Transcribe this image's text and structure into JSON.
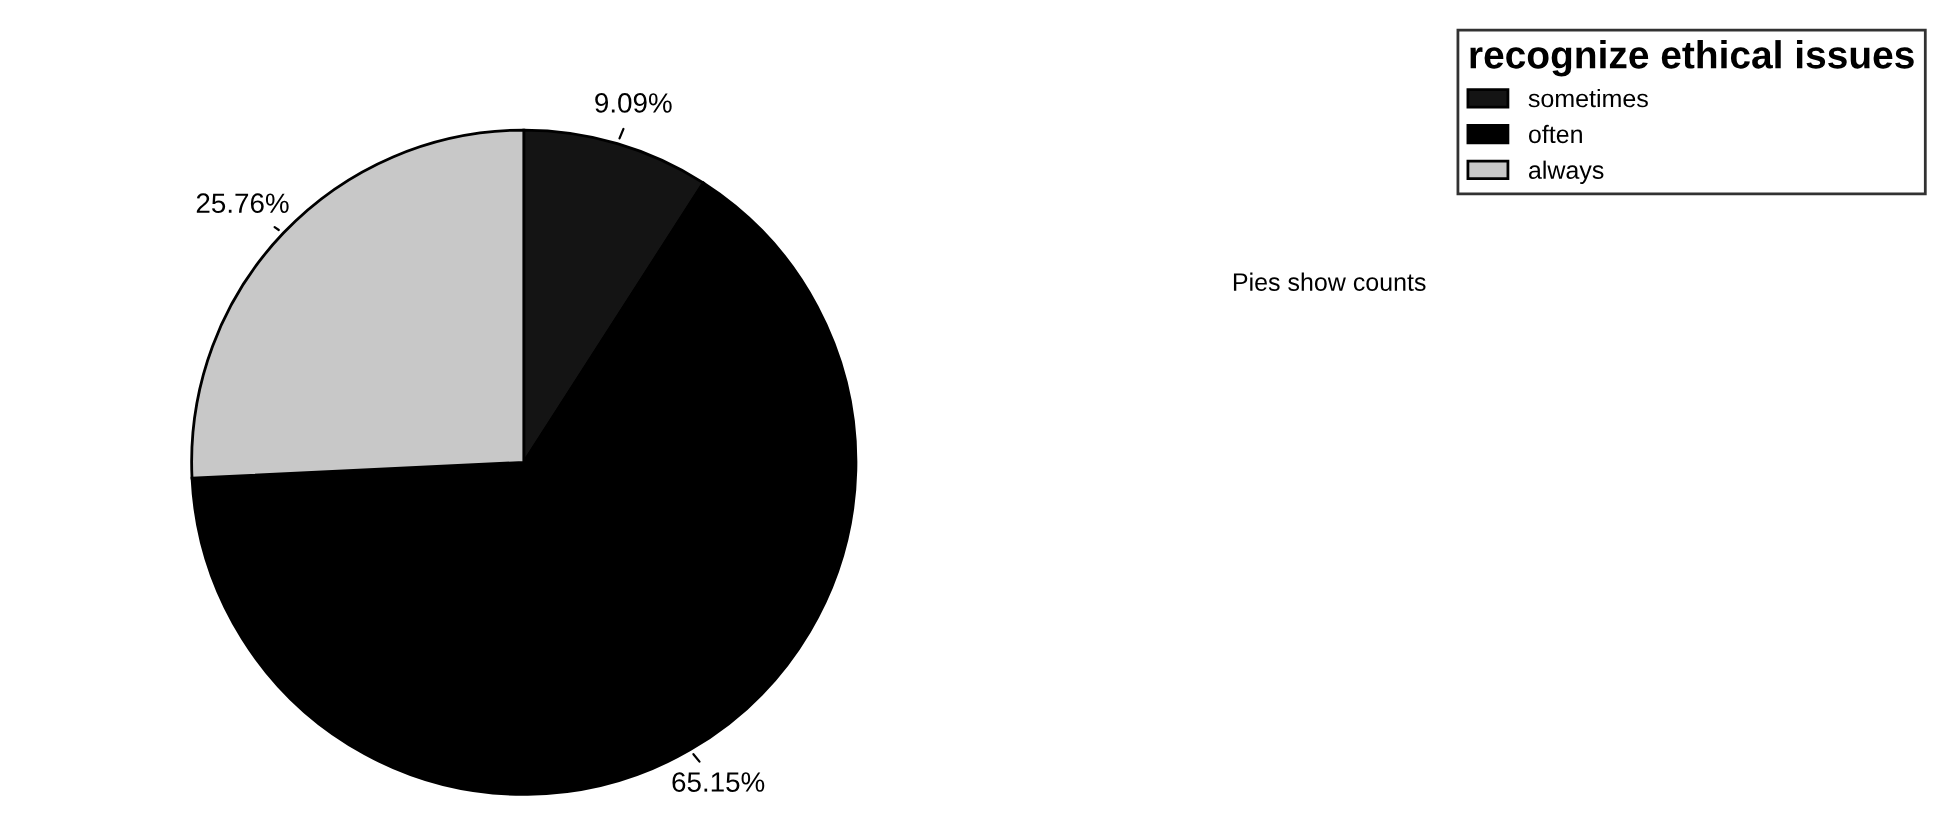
{
  "chart_data": {
    "type": "pie",
    "legend_title": "recognize ethical issues",
    "categories": [
      "sometimes",
      "often",
      "always"
    ],
    "values": [
      9.09,
      65.15,
      25.76
    ],
    "value_labels": [
      "9.09%",
      "65.15%",
      "25.76%"
    ],
    "colors": [
      "#141414",
      "#000000",
      "#c8c8c8"
    ],
    "legend": "top right",
    "annotations": [
      "Pies show counts"
    ]
  }
}
